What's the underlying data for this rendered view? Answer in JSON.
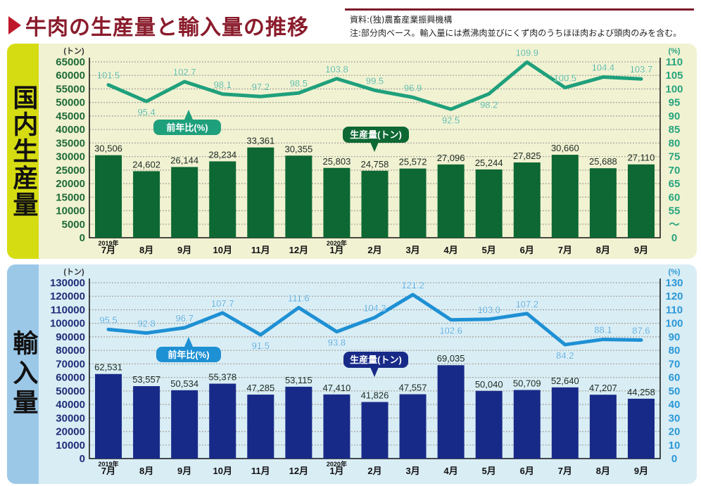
{
  "title": "牛肉の生産量と輸入量の推移",
  "source": "資料:(独)農畜産業振興機構",
  "note": "注:部分肉ベース。輸入量には煮沸肉並びにくず肉のうちほほ肉および頭肉のみを含む。",
  "chart_data": [
    {
      "type": "bar+line",
      "panel_label": "国内生産量",
      "categories": [
        "7月",
        "8月",
        "9月",
        "10月",
        "11月",
        "12月",
        "1月",
        "2月",
        "3月",
        "4月",
        "5月",
        "6月",
        "7月",
        "8月",
        "9月"
      ],
      "year_labels": {
        "0": "2019年",
        "6": "2020年"
      },
      "left_unit": "(トン)",
      "right_unit": "(%)",
      "left_ticks": [
        "65000",
        "60000",
        "55000",
        "50000",
        "45000",
        "40000",
        "35000",
        "30000",
        "25000",
        "20000",
        "15000",
        "10000",
        "5000",
        "0"
      ],
      "right_ticks": [
        "110",
        "105",
        "100",
        "95",
        "90",
        "85",
        "80",
        "75",
        "70",
        "65",
        "60",
        "55",
        "〜",
        "0"
      ],
      "ylim": [
        0,
        65000
      ],
      "y2_axis": "broken: 0, then 55–110",
      "grid": true,
      "series": [
        {
          "name": "生産量(トン)",
          "type": "bar",
          "values": [
            30506,
            24602,
            26144,
            28234,
            33361,
            30355,
            25803,
            24758,
            25572,
            27096,
            25244,
            27825,
            30660,
            25688,
            27110
          ],
          "labels": [
            "30,506",
            "24,602",
            "26,144",
            "28,234",
            "33,361",
            "30,355",
            "25,803",
            "24,758",
            "25,572",
            "27,096",
            "25,244",
            "27,825",
            "30,660",
            "25,688",
            "27,110"
          ]
        },
        {
          "name": "前年比(%)",
          "type": "line",
          "values": [
            101.5,
            95.4,
            102.7,
            98.1,
            97.2,
            98.5,
            103.8,
            99.5,
            96.9,
            92.5,
            98.2,
            109.9,
            100.5,
            104.4,
            103.7
          ]
        }
      ],
      "colors": {
        "bar": "#0d6833",
        "line": "#1fa07c",
        "bar_callout": "#0d6833",
        "line_callout": "#1fa07c",
        "left_tick": "#1d6a38",
        "right_tick": "#27a47e"
      }
    },
    {
      "type": "bar+line",
      "panel_label": "輸入量",
      "categories": [
        "7月",
        "8月",
        "9月",
        "10月",
        "11月",
        "12月",
        "1月",
        "2月",
        "3月",
        "4月",
        "5月",
        "6月",
        "7月",
        "8月",
        "9月"
      ],
      "year_labels": {
        "0": "2019年",
        "6": "2020年"
      },
      "left_unit": "(トン)",
      "right_unit": "(%)",
      "left_ticks": [
        "130000",
        "120000",
        "110000",
        "100000",
        "90000",
        "80000",
        "70000",
        "60000",
        "50000",
        "40000",
        "30000",
        "20000",
        "10000",
        "0"
      ],
      "right_ticks": [
        "130",
        "120",
        "110",
        "100",
        "90",
        "80",
        "70",
        "60",
        "50",
        "40",
        "30",
        "20",
        "10",
        "0"
      ],
      "ylim": [
        0,
        130000
      ],
      "y2lim": [
        0,
        130
      ],
      "grid": true,
      "series": [
        {
          "name": "生産量(トン)",
          "type": "bar",
          "values": [
            62531,
            53557,
            50534,
            55378,
            47285,
            53115,
            47410,
            41826,
            47557,
            69035,
            50040,
            50709,
            52640,
            47207,
            44258
          ],
          "labels": [
            "62,531",
            "53,557",
            "50,534",
            "55,378",
            "47,285",
            "53,115",
            "47,410",
            "41,826",
            "47,557",
            "69,035",
            "50,040",
            "50,709",
            "52,640",
            "47,207",
            "44,258"
          ]
        },
        {
          "name": "前年比(%)",
          "type": "line",
          "values": [
            95.5,
            92.8,
            96.7,
            107.7,
            91.5,
            111.6,
            93.8,
            104.3,
            121.2,
            102.6,
            103.0,
            107.2,
            84.2,
            88.1,
            87.6
          ],
          "labels": [
            "95.5",
            "92.8",
            "96.7",
            "107.7",
            "91.5",
            "111.6",
            "93.8",
            "104.3",
            "121.2",
            "102.6",
            "103.0",
            "107.2",
            "84.2",
            "88.1",
            "87.6"
          ]
        }
      ],
      "colors": {
        "bar": "#182a88",
        "line": "#1e90d4",
        "bar_callout": "#182a88",
        "line_callout": "#1e90d4",
        "left_tick": "#1f2d78",
        "right_tick": "#2b98d6"
      }
    }
  ]
}
